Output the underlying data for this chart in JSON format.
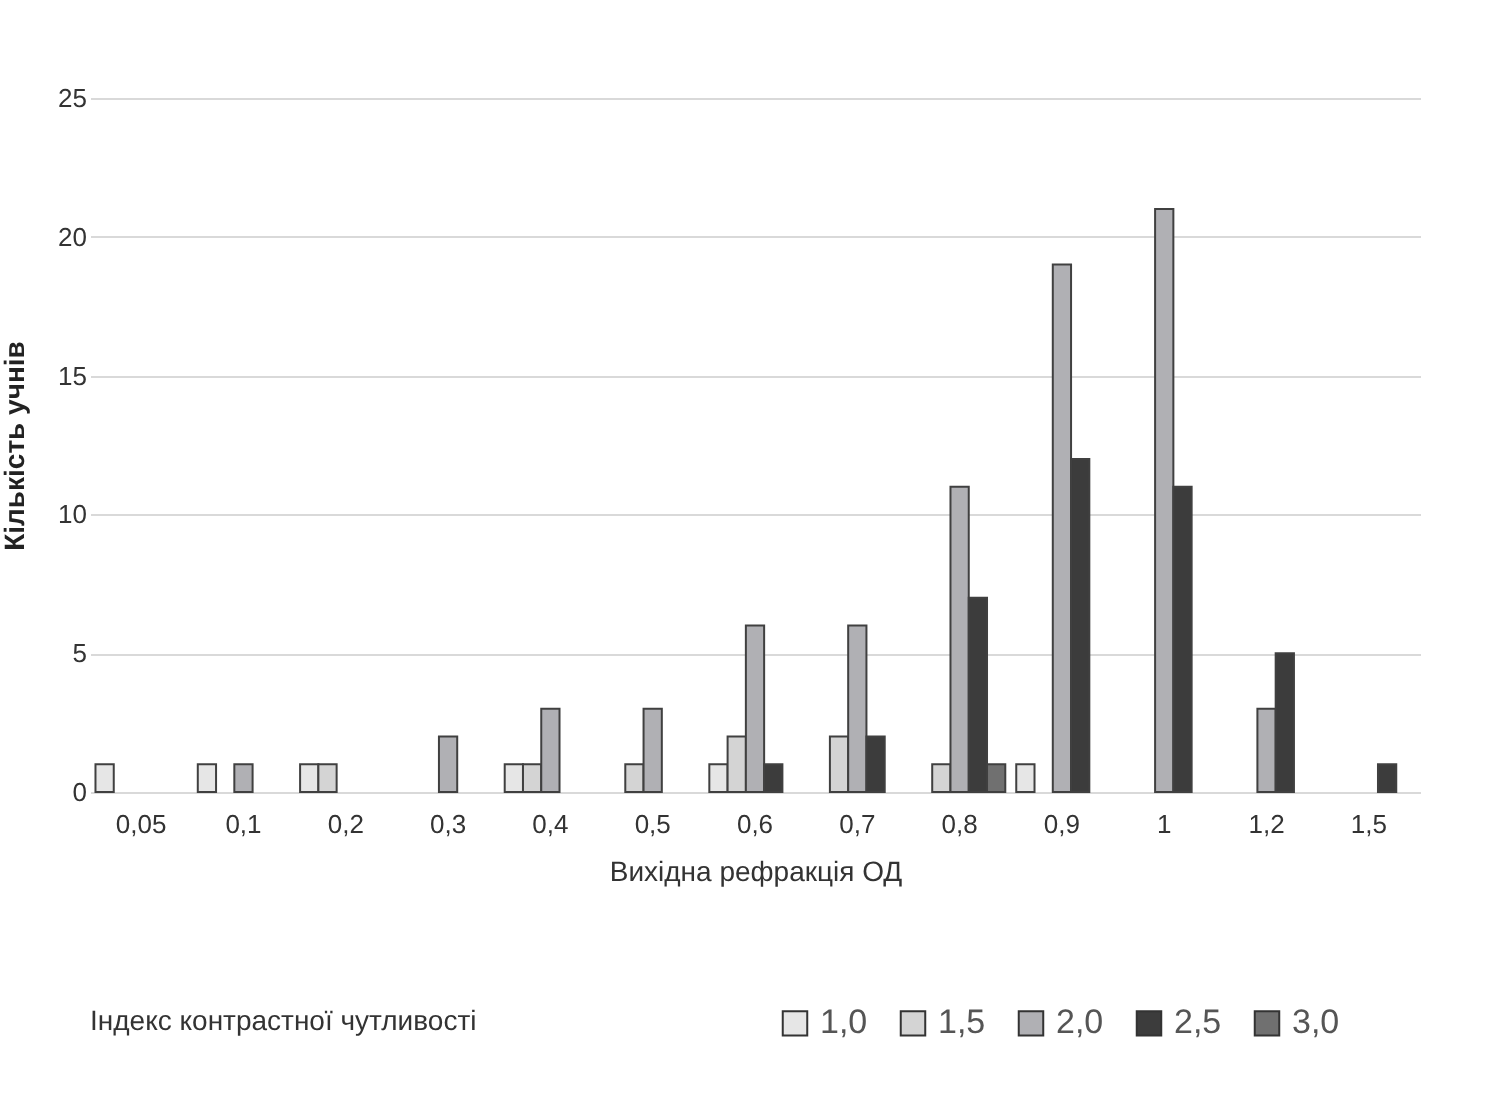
{
  "chart_data": {
    "type": "bar",
    "xlabel": "Вихідна рефракція ОД",
    "ylabel": "Кількість учнів",
    "legend_title": "Індекс контрастної чутливості",
    "categories": [
      "0,05",
      "0,1",
      "0,2",
      "0,3",
      "0,4",
      "0,5",
      "0,6",
      "0,7",
      "0,8",
      "0,9",
      "1",
      "1,2",
      "1,5"
    ],
    "series": [
      {
        "name": "1,0",
        "color": "#e6e6e6",
        "values": [
          1,
          1,
          1,
          null,
          1,
          null,
          1,
          null,
          null,
          1,
          null,
          null,
          null
        ]
      },
      {
        "name": "1,5",
        "color": "#d4d4d4",
        "values": [
          null,
          null,
          1,
          null,
          1,
          1,
          2,
          2,
          1,
          null,
          null,
          null,
          null
        ]
      },
      {
        "name": "2,0",
        "color": "#b0b0b4",
        "values": [
          null,
          1,
          null,
          2,
          3,
          3,
          6,
          6,
          11,
          19,
          21,
          3,
          null
        ]
      },
      {
        "name": "2,5",
        "color": "#3c3c3c",
        "values": [
          null,
          null,
          null,
          null,
          null,
          null,
          1,
          2,
          7,
          12,
          11,
          5,
          1
        ]
      },
      {
        "name": "3,0",
        "color": "#707070",
        "values": [
          null,
          null,
          null,
          null,
          null,
          null,
          null,
          null,
          1,
          null,
          null,
          null,
          null
        ]
      }
    ],
    "ylim": [
      0,
      25
    ],
    "yticks": [
      0,
      5,
      10,
      15,
      20,
      25
    ],
    "grid": "y",
    "legend": "bottom"
  }
}
